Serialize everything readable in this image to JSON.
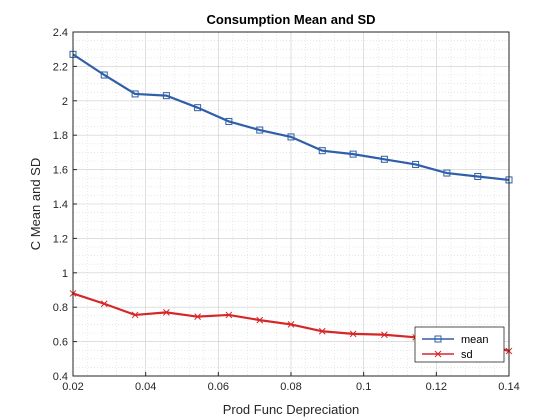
{
  "chart_data": {
    "type": "line",
    "title": "Consumption Mean and SD",
    "xlabel": "Prod Func Depreciation",
    "ylabel": "C Mean and SD",
    "xlim": [
      0.02,
      0.14
    ],
    "ylim": [
      0.4,
      2.4
    ],
    "xticks": [
      "0.02",
      "0.04",
      "0.06",
      "0.08",
      "0.1",
      "0.12",
      "0.14"
    ],
    "yticks": [
      "0.4",
      "0.6",
      "0.8",
      "1",
      "1.2",
      "1.4",
      "1.6",
      "1.8",
      "2",
      "2.2",
      "2.4"
    ],
    "grid": "major and minor, dotted",
    "legend_position": "bottom-right",
    "x": [
      0.02,
      0.0286,
      0.0371,
      0.0457,
      0.0543,
      0.0629,
      0.0714,
      0.08,
      0.0886,
      0.0971,
      0.1057,
      0.1143,
      0.1229,
      0.1314,
      0.14
    ],
    "series": [
      {
        "name": "mean",
        "color": "#2f5fa8",
        "marker": "square",
        "values": [
          2.27,
          2.15,
          2.04,
          2.03,
          1.96,
          1.88,
          1.83,
          1.79,
          1.71,
          1.69,
          1.66,
          1.63,
          1.58,
          1.56,
          1.54
        ]
      },
      {
        "name": "sd",
        "color": "#d62728",
        "marker": "x",
        "values": [
          0.88,
          0.82,
          0.755,
          0.77,
          0.745,
          0.755,
          0.725,
          0.7,
          0.66,
          0.645,
          0.64,
          0.625,
          0.615,
          0.6,
          0.545
        ]
      }
    ]
  }
}
